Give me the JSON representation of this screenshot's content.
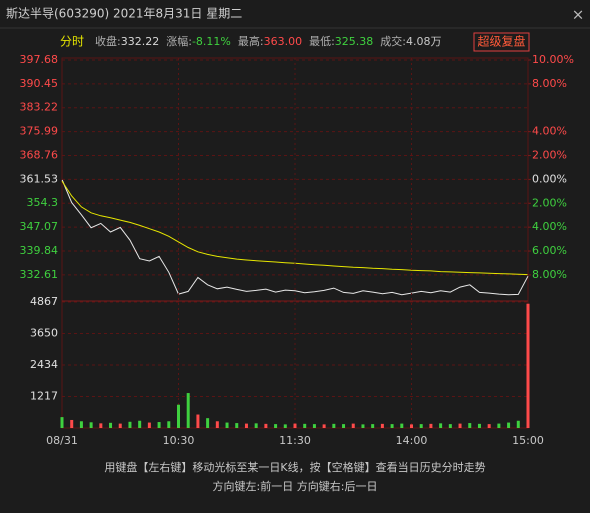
{
  "header": {
    "title": "斯达半导(603290) 2021年8月31日 星期二",
    "close": "×"
  },
  "toolbar": {
    "mode": "分时",
    "stats": [
      {
        "label": "收盘:",
        "value": "332.22",
        "color": "#d8d8d8"
      },
      {
        "label": "涨幅:",
        "value": "-8.11%",
        "color": "#3fd03f"
      },
      {
        "label": "最高:",
        "value": "363.00",
        "color": "#ff4a4a"
      },
      {
        "label": "最低:",
        "value": "325.38",
        "color": "#3fd03f"
      },
      {
        "label": "成交:",
        "value": "4.08万",
        "color": "#c8c8c8"
      }
    ],
    "button": "超级复盘"
  },
  "chart_data": [
    {
      "type": "line",
      "x": [
        0,
        5,
        10,
        15,
        20,
        25,
        30,
        35,
        40,
        45,
        50,
        55,
        60,
        65,
        70,
        75,
        80,
        85,
        90,
        95,
        100,
        105,
        110,
        115,
        120,
        125,
        130,
        135,
        140,
        145,
        150,
        155,
        160,
        165,
        170,
        175,
        180,
        185,
        190,
        195,
        200,
        205,
        210,
        215,
        220,
        225,
        230,
        235,
        240
      ],
      "series": [
        {
          "color": "#e8e8e8",
          "values": [
            361.5,
            354.5,
            350.8,
            346.9,
            348.2,
            345.6,
            347.0,
            343.1,
            337.5,
            336.8,
            338.2,
            333.4,
            326.8,
            327.6,
            331.8,
            329.6,
            328.4,
            328.9,
            328.2,
            327.6,
            327.9,
            328.3,
            327.4,
            328.0,
            327.8,
            327.2,
            327.5,
            327.9,
            328.6,
            327.3,
            327.0,
            327.8,
            327.4,
            326.9,
            327.3,
            326.6,
            327.1,
            327.6,
            327.2,
            327.8,
            327.4,
            328.9,
            329.6,
            327.3,
            327.1,
            326.8,
            326.6,
            326.7,
            332.22
          ]
        },
        {
          "color": "#e6e600",
          "values": [
            361.0,
            356.5,
            353.2,
            351.4,
            350.5,
            349.9,
            349.2,
            348.5,
            347.6,
            346.6,
            345.6,
            344.3,
            342.6,
            340.9,
            339.6,
            338.8,
            338.2,
            337.8,
            337.4,
            337.1,
            336.9,
            336.7,
            336.5,
            336.3,
            336.1,
            335.9,
            335.7,
            335.5,
            335.3,
            335.1,
            334.9,
            334.8,
            334.6,
            334.5,
            334.3,
            334.2,
            334.0,
            333.9,
            333.8,
            333.6,
            333.5,
            333.4,
            333.3,
            333.2,
            333.1,
            333.0,
            332.9,
            332.8,
            332.7
          ]
        }
      ],
      "xlim": [
        0,
        240
      ],
      "ylim": [
        325.0,
        397.68
      ],
      "yticks": [
        397.68,
        390.45,
        383.22,
        375.99,
        368.76,
        361.53,
        354.3,
        347.07,
        339.84,
        332.61
      ],
      "ytick_labels_colors": [
        "#ff4a4a",
        "#ff4a4a",
        "#ff4a4a",
        "#ff4a4a",
        "#ff4a4a",
        "#e0e0e0",
        "#3fd03f",
        "#3fd03f",
        "#3fd03f",
        "#3fd03f"
      ],
      "y2lim": [
        -10.1,
        10
      ],
      "y2ticks": [
        {
          "value": 10,
          "label": "10.00%"
        },
        {
          "value": 8,
          "label": "8.00%"
        },
        {
          "value": 4,
          "label": "4.00%"
        },
        {
          "value": 2,
          "label": "2.00%"
        },
        {
          "value": 0,
          "label": "0.00%"
        },
        {
          "value": -2,
          "label": "2.00%"
        },
        {
          "value": -4,
          "label": "4.00%"
        },
        {
          "value": -6,
          "label": "6.00%"
        },
        {
          "value": -8,
          "label": "8.00%"
        }
      ],
      "y2tick_labels_colors": [
        "#ff4a4a",
        "#ff4a4a",
        "#ff4a4a",
        "#ff4a4a",
        "#e0e0e0",
        "#3fd03f",
        "#3fd03f",
        "#3fd03f",
        "#3fd03f"
      ],
      "grid": true
    },
    {
      "type": "bar",
      "x": [
        0,
        5,
        10,
        15,
        20,
        25,
        30,
        35,
        40,
        45,
        50,
        55,
        60,
        65,
        70,
        75,
        80,
        85,
        90,
        95,
        100,
        105,
        110,
        115,
        120,
        125,
        130,
        135,
        140,
        145,
        150,
        155,
        160,
        165,
        170,
        175,
        180,
        185,
        190,
        195,
        200,
        205,
        210,
        215,
        220,
        225,
        230,
        235,
        240
      ],
      "values": [
        420,
        310,
        260,
        220,
        180,
        200,
        170,
        240,
        280,
        210,
        230,
        260,
        900,
        1350,
        520,
        380,
        260,
        210,
        190,
        170,
        180,
        160,
        150,
        140,
        170,
        160,
        150,
        140,
        160,
        150,
        170,
        140,
        150,
        160,
        150,
        170,
        140,
        150,
        160,
        180,
        150,
        170,
        190,
        160,
        150,
        170,
        210,
        280,
        4800
      ],
      "colors": [
        "#3fd03f",
        "#ff4a4a",
        "#3fd03f",
        "#3fd03f",
        "#ff4a4a",
        "#3fd03f",
        "#ff4a4a",
        "#3fd03f",
        "#3fd03f",
        "#ff4a4a",
        "#3fd03f",
        "#3fd03f",
        "#3fd03f",
        "#3fd03f",
        "#ff4a4a",
        "#3fd03f",
        "#ff4a4a",
        "#3fd03f",
        "#3fd03f",
        "#ff4a4a",
        "#3fd03f",
        "#ff4a4a",
        "#3fd03f",
        "#3fd03f",
        "#ff4a4a",
        "#3fd03f",
        "#3fd03f",
        "#ff4a4a",
        "#3fd03f",
        "#3fd03f",
        "#ff4a4a",
        "#3fd03f",
        "#3fd03f",
        "#ff4a4a",
        "#3fd03f",
        "#3fd03f",
        "#ff4a4a",
        "#3fd03f",
        "#ff4a4a",
        "#3fd03f",
        "#3fd03f",
        "#ff4a4a",
        "#3fd03f",
        "#3fd03f",
        "#ff4a4a",
        "#3fd03f",
        "#3fd03f",
        "#3fd03f",
        "#ff4a4a"
      ],
      "xlim": [
        0,
        240
      ],
      "xticks": [
        {
          "value": 0,
          "label": "08/31"
        },
        {
          "value": 60,
          "label": "10:30"
        },
        {
          "value": 120,
          "label": "11:30"
        },
        {
          "value": 180,
          "label": "14:00"
        },
        {
          "value": 240,
          "label": "15:00"
        }
      ],
      "ylim": [
        0,
        4867
      ],
      "yticks": [
        4867,
        3650,
        2434,
        1217
      ],
      "ytick_labels_colors": [
        "#e0e0e0",
        "#e0e0e0",
        "#e0e0e0",
        "#e0e0e0"
      ],
      "grid": true
    }
  ],
  "footer": {
    "lines": [
      "用键盘【左右键】移动光标至某一日K线，按【空格键】查看当日历史分时走势",
      "方向键左:前一日   方向键右:后一日"
    ]
  }
}
